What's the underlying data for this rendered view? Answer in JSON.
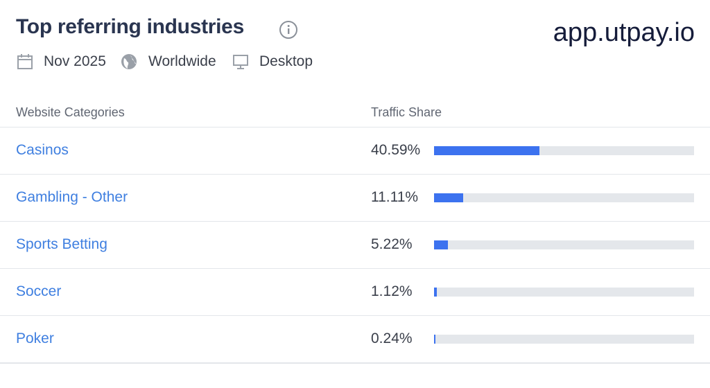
{
  "header": {
    "title": "Top referring industries",
    "filters": [
      "Nov 2025",
      "Worldwide",
      "Desktop"
    ]
  },
  "watermark": "app.utpay.io",
  "table": {
    "columns": [
      "Website Categories",
      "Traffic Share"
    ],
    "xlim": [
      0,
      100
    ],
    "rows": [
      {
        "category": "Casinos",
        "value": 40.59,
        "value_label": "40.59%"
      },
      {
        "category": "Gambling - Other",
        "value": 11.11,
        "value_label": "11.11%"
      },
      {
        "category": "Sports Betting",
        "value": 5.22,
        "value_label": "5.22%"
      },
      {
        "category": "Soccer",
        "value": 1.12,
        "value_label": "1.12%"
      },
      {
        "category": "Poker",
        "value": 0.24,
        "value_label": "0.24%"
      }
    ]
  }
}
